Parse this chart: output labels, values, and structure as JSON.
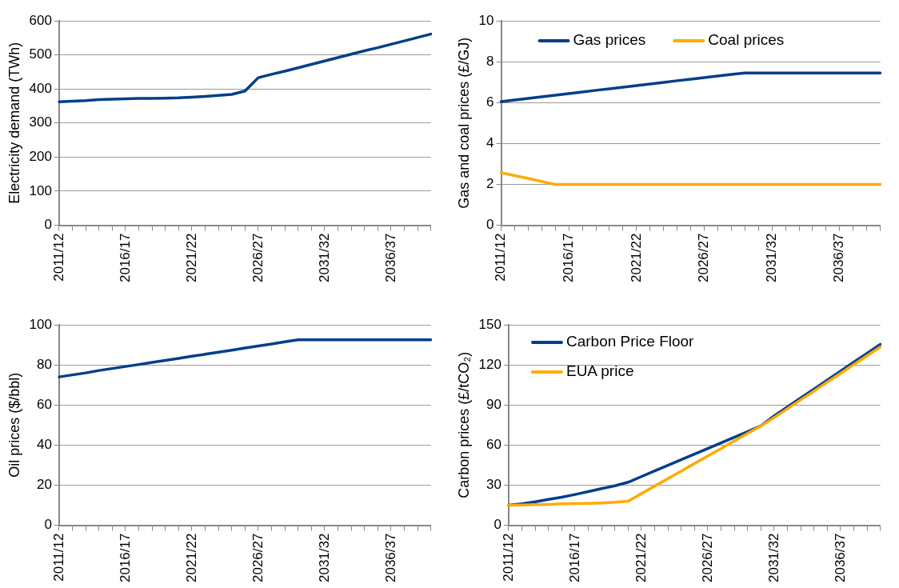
{
  "chart_data": [
    {
      "type": "line",
      "ylabel": "Electricity demand (TWh)",
      "categories": [
        "2011/12",
        null,
        null,
        null,
        null,
        "2016/17",
        null,
        null,
        null,
        null,
        "2021/22",
        null,
        null,
        null,
        null,
        "2026/27",
        null,
        null,
        null,
        null,
        "2031/32",
        null,
        null,
        null,
        null,
        "2036/37",
        null,
        null,
        null
      ],
      "series": [
        {
          "color": "#003f8a",
          "values": [
            362,
            364,
            366,
            369,
            370,
            371,
            372,
            372,
            373,
            374,
            376,
            378,
            381,
            384,
            394,
            433,
            443,
            452,
            462,
            472,
            482,
            492,
            502,
            512,
            521,
            531,
            541,
            551,
            561
          ]
        }
      ],
      "ylim": [
        0,
        600
      ],
      "yticks": [
        0,
        100,
        200,
        300,
        400,
        500,
        600
      ],
      "grid": "y",
      "legend": false,
      "marker": "none",
      "line_style": "solid"
    },
    {
      "type": "line",
      "ylabel": "Gas and coal prices (£/GJ)",
      "categories": [
        "2011/12",
        null,
        null,
        null,
        null,
        "2016/17",
        null,
        null,
        null,
        null,
        "2021/22",
        null,
        null,
        null,
        null,
        "2026/27",
        null,
        null,
        null,
        null,
        "2031/32",
        null,
        null,
        null,
        null,
        "2036/37",
        null,
        null,
        null
      ],
      "series": [
        {
          "name": "Gas prices",
          "color": "#003f8a",
          "values": [
            6.05,
            6.13,
            6.2,
            6.28,
            6.36,
            6.44,
            6.52,
            6.6,
            6.67,
            6.75,
            6.83,
            6.91,
            6.99,
            7.07,
            7.14,
            7.22,
            7.3,
            7.38,
            7.45,
            7.45,
            7.45,
            7.45,
            7.45,
            7.45,
            7.45,
            7.45,
            7.45,
            7.45,
            7.45
          ]
        },
        {
          "name": "Coal prices",
          "color": "#ffaa00",
          "values": [
            2.57,
            2.43,
            2.29,
            2.14,
            2.0,
            2.0,
            2.0,
            2.0,
            2.0,
            2.0,
            2.0,
            2.0,
            2.0,
            2.0,
            2.0,
            2.0,
            2.0,
            2.0,
            2.0,
            2.0,
            2.0,
            2.0,
            2.0,
            2.0,
            2.0,
            2.0,
            2.0,
            2.0,
            2.0
          ]
        }
      ],
      "ylim": [
        0,
        10
      ],
      "yticks": [
        0,
        2,
        4,
        6,
        8,
        10
      ],
      "grid": "y",
      "legend": "top",
      "marker": "none",
      "line_style": "solid"
    },
    {
      "type": "line",
      "ylabel": "Oil prices ($/bbl)",
      "categories": [
        "2011/12",
        null,
        null,
        null,
        null,
        "2016/17",
        null,
        null,
        null,
        null,
        "2021/22",
        null,
        null,
        null,
        null,
        "2026/27",
        null,
        null,
        null,
        null,
        "2031/32",
        null,
        null,
        null,
        null,
        "2036/37",
        null,
        null,
        null
      ],
      "series": [
        {
          "color": "#003f8a",
          "values": [
            74,
            75,
            76,
            77.2,
            78.2,
            79.2,
            80.2,
            81.2,
            82.2,
            83.2,
            84.3,
            85.3,
            86.3,
            87.3,
            88.4,
            89.4,
            90.4,
            91.5,
            92.5,
            92.5,
            92.5,
            92.5,
            92.5,
            92.5,
            92.5,
            92.5,
            92.5,
            92.5,
            92.5
          ]
        }
      ],
      "ylim": [
        0,
        100
      ],
      "yticks": [
        0,
        20,
        40,
        60,
        80,
        100
      ],
      "grid": "y",
      "legend": false,
      "marker": "none",
      "line_style": "solid"
    },
    {
      "type": "line",
      "ylabel": "Carbon prices (£/tCO₂)",
      "categories": [
        "2011/12",
        null,
        null,
        null,
        null,
        "2016/17",
        null,
        null,
        null,
        null,
        "2021/22",
        null,
        null,
        null,
        null,
        "2026/27",
        null,
        null,
        null,
        null,
        "2031/32",
        null,
        null,
        null,
        null,
        "2036/37",
        null,
        null,
        null
      ],
      "series": [
        {
          "name": "Carbon Price Floor",
          "color": "#003f8a",
          "values": [
            15,
            16,
            17.5,
            19.3,
            21,
            23,
            25.2,
            27.4,
            29.5,
            32.2,
            36.4,
            40.6,
            44.8,
            49,
            53.2,
            57.4,
            61.6,
            65.8,
            70,
            74.3,
            81.8,
            88.5,
            95.2,
            101.9,
            108.6,
            115.3,
            122,
            128.7,
            135.4
          ]
        },
        {
          "name": "EUA price",
          "color": "#ffaa00",
          "values": [
            15,
            15.2,
            15.4,
            15.6,
            16,
            16.2,
            16.4,
            16.7,
            17.2,
            18,
            23.6,
            29.3,
            34.9,
            40.5,
            46.2,
            51.8,
            57.4,
            63.1,
            68.7,
            74.3,
            80.6,
            87.2,
            93.8,
            100.4,
            107,
            113.6,
            120.2,
            126.8,
            133.4
          ]
        }
      ],
      "ylim": [
        0,
        150
      ],
      "yticks": [
        0,
        30,
        60,
        90,
        120,
        150
      ],
      "grid": "y",
      "legend": "top left",
      "marker": "none",
      "line_style": "solid"
    }
  ]
}
